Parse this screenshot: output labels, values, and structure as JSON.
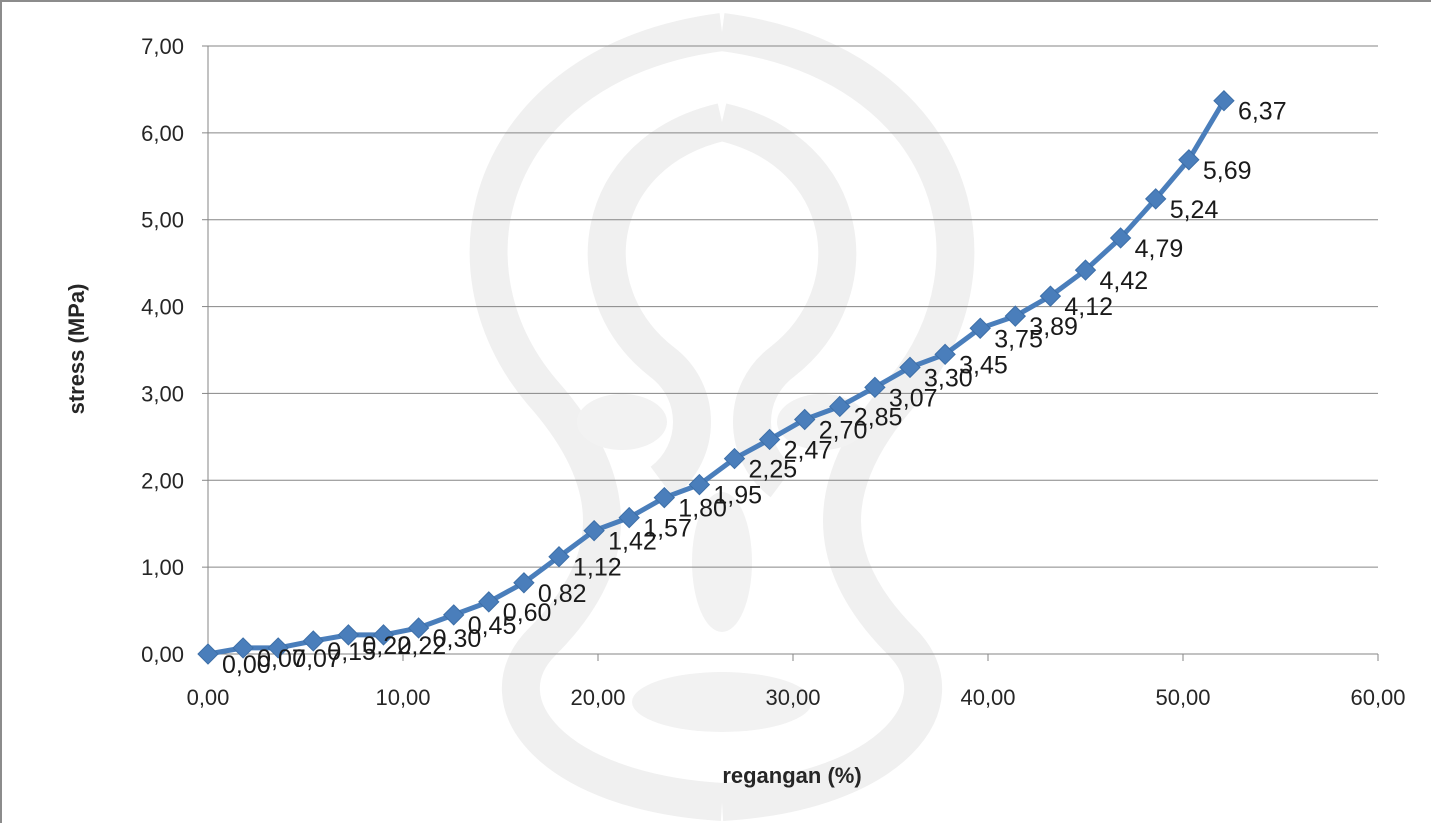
{
  "chart_data": {
    "type": "line",
    "title": "",
    "xlabel": "regangan (%)",
    "ylabel": "stress (MPa)",
    "xlim": [
      0,
      60
    ],
    "ylim": [
      0,
      7
    ],
    "x_ticks": [
      "0,00",
      "10,00",
      "20,00",
      "30,00",
      "40,00",
      "50,00",
      "60,00"
    ],
    "y_ticks": [
      "0,00",
      "1,00",
      "2,00",
      "3,00",
      "4,00",
      "5,00",
      "6,00",
      "7,00"
    ],
    "grid": "horizontal",
    "marker": "diamond",
    "colors": {
      "series": "#4a7ebb",
      "grid": "#868686"
    },
    "series": [
      {
        "x": [
          0.0,
          1.8,
          3.6,
          5.4,
          7.2,
          9.0,
          10.8,
          12.6,
          14.4,
          16.2,
          18.0,
          19.8,
          21.6,
          23.4,
          25.2,
          27.0,
          28.8,
          30.6,
          32.4,
          34.2,
          36.0,
          37.8,
          39.6,
          41.4,
          43.2,
          45.0,
          46.8,
          48.6,
          50.3,
          52.1
        ],
        "y": [
          0.0,
          0.07,
          0.07,
          0.15,
          0.22,
          0.22,
          0.3,
          0.45,
          0.6,
          0.82,
          1.12,
          1.42,
          1.57,
          1.8,
          1.95,
          2.25,
          2.47,
          2.7,
          2.85,
          3.07,
          3.3,
          3.45,
          3.75,
          3.89,
          4.12,
          4.42,
          4.79,
          5.24,
          5.69,
          6.37
        ],
        "labels": [
          "0,00",
          "0,07",
          "0,07",
          "0,15",
          "0,22",
          "0,22",
          "0,30",
          "0,45",
          "0,60",
          "0,82",
          "1,12",
          "1,42",
          "1,57",
          "1,80",
          "1,95",
          "2,25",
          "2,47",
          "2,70",
          "2,85",
          "3,07",
          "3,30",
          "3,45",
          "3,75",
          "3,89",
          "4,12",
          "4,42",
          "4,79",
          "5,24",
          "5,69",
          "6,37"
        ]
      }
    ]
  }
}
